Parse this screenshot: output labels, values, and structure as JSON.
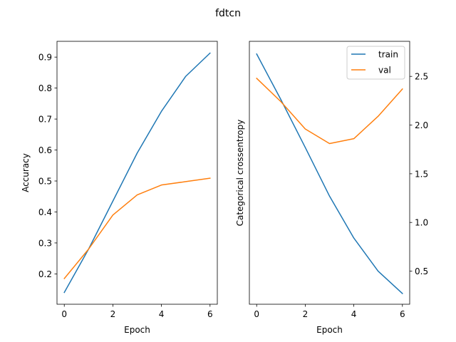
{
  "figure": {
    "title": "fdtcn"
  },
  "chart_data": [
    {
      "type": "line",
      "title": "",
      "xlabel": "Epoch",
      "ylabel": "Accuracy",
      "x": [
        0,
        1,
        2,
        3,
        4,
        5,
        6
      ],
      "xlim": [
        -0.3,
        6.3
      ],
      "ylim": [
        0.102,
        0.951
      ],
      "xticks": [
        0,
        2,
        4,
        6
      ],
      "yticks": [
        0.2,
        0.3,
        0.4,
        0.5,
        0.6,
        0.7,
        0.8,
        0.9
      ],
      "y_axis_side": "left",
      "grid": false,
      "series": [
        {
          "name": "train",
          "color": "#1f77b4",
          "values": [
            0.14,
            0.28,
            0.435,
            0.59,
            0.725,
            0.838,
            0.913
          ]
        },
        {
          "name": "val",
          "color": "#ff7f0e",
          "values": [
            0.185,
            0.28,
            0.39,
            0.455,
            0.487,
            0.498,
            0.509
          ]
        }
      ]
    },
    {
      "type": "line",
      "title": "",
      "xlabel": "Epoch",
      "ylabel": "Categorical crossentropy",
      "x": [
        0,
        1,
        2,
        3,
        4,
        5,
        6
      ],
      "xlim": [
        -0.3,
        6.3
      ],
      "ylim": [
        0.16,
        2.86
      ],
      "xticks": [
        0,
        2,
        4,
        6
      ],
      "yticks": [
        0.5,
        1.0,
        1.5,
        2.0,
        2.5
      ],
      "y_axis_side": "right",
      "grid": false,
      "legend": {
        "position": "top-right"
      },
      "series": [
        {
          "name": "train",
          "color": "#1f77b4",
          "values": [
            2.73,
            2.26,
            1.77,
            1.27,
            0.84,
            0.5,
            0.27
          ]
        },
        {
          "name": "val",
          "color": "#ff7f0e",
          "values": [
            2.48,
            2.24,
            1.96,
            1.81,
            1.86,
            2.09,
            2.37
          ]
        }
      ]
    }
  ]
}
